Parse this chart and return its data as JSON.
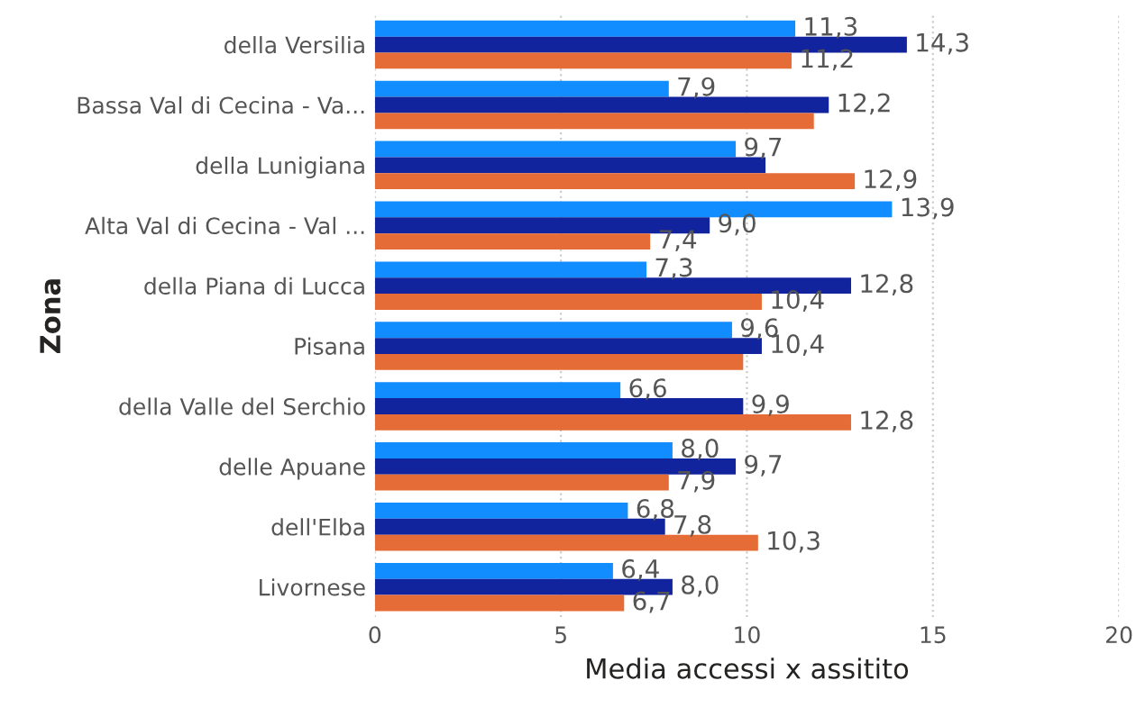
{
  "chart_data": {
    "type": "bar",
    "orientation": "horizontal",
    "xlabel": "Media accessi x assitito",
    "ylabel": "Zona",
    "categories": [
      "della Versilia",
      "Bassa Val di Cecina - Va...",
      "della Lunigiana",
      "Alta Val di Cecina - Val ...",
      "della Piana di Lucca",
      "Pisana",
      "della Valle del Serchio",
      "delle Apuane",
      "dell'Elba",
      "Livornese"
    ],
    "series": [
      {
        "color": "#118dff",
        "values": [
          11.3,
          7.9,
          9.7,
          13.9,
          7.3,
          9.6,
          6.6,
          8.0,
          6.8,
          6.4
        ],
        "value_labels": [
          "11,3",
          "7,9",
          "9,7",
          "13,9",
          "7,3",
          "9,6",
          "6,6",
          "8,0",
          "6,8",
          "6,4"
        ]
      },
      {
        "color": "#12239e",
        "values": [
          14.3,
          12.2,
          10.5,
          9.0,
          12.8,
          10.4,
          9.9,
          9.7,
          7.8,
          8.0
        ],
        "value_labels": [
          "14,3",
          "12,2",
          null,
          "9,0",
          "12,8",
          "10,4",
          "9,9",
          "9,7",
          "7,8",
          "8,0"
        ]
      },
      {
        "color": "#e66c37",
        "values": [
          11.2,
          11.8,
          12.9,
          7.4,
          10.4,
          9.9,
          12.8,
          7.9,
          10.3,
          6.7
        ],
        "value_labels": [
          "11,2",
          null,
          "12,9",
          "7,4",
          "10,4",
          null,
          "12,8",
          "7,9",
          "10,3",
          "6,7"
        ]
      }
    ],
    "xlim": [
      0,
      20
    ],
    "xticks": [
      0,
      5,
      10,
      15,
      20
    ],
    "grid": "x",
    "legend": false
  }
}
